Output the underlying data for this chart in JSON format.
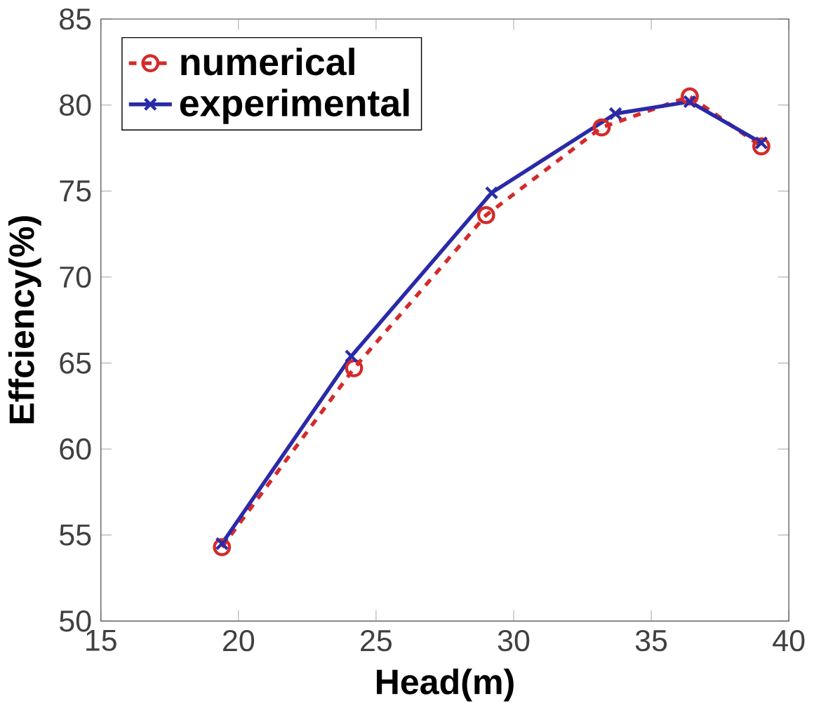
{
  "chart_data": {
    "type": "line",
    "xlabel": "Head(m)",
    "ylabel": "Effciency(%)",
    "xlim": [
      15,
      40
    ],
    "xticks": [
      15,
      20,
      25,
      30,
      35,
      40
    ],
    "ylim": [
      50,
      85
    ],
    "yticks": [
      50,
      55,
      60,
      65,
      70,
      75,
      80,
      85
    ],
    "grid": false,
    "legend": "top left",
    "series": [
      {
        "name": "numerical",
        "color": "#d42a2a",
        "marker": "circle",
        "line_style": "dashed",
        "x": [
          19.4,
          24.2,
          29.0,
          33.2,
          36.4,
          39.0
        ],
        "values": [
          54.3,
          64.7,
          73.6,
          78.7,
          80.5,
          77.6
        ]
      },
      {
        "name": "experimental",
        "color": "#2a2aa8",
        "marker": "cross",
        "line_style": "solid",
        "x": [
          19.4,
          24.1,
          29.2,
          33.7,
          36.4,
          39.0
        ],
        "values": [
          54.5,
          65.4,
          74.9,
          79.5,
          80.2,
          77.8
        ]
      }
    ]
  }
}
